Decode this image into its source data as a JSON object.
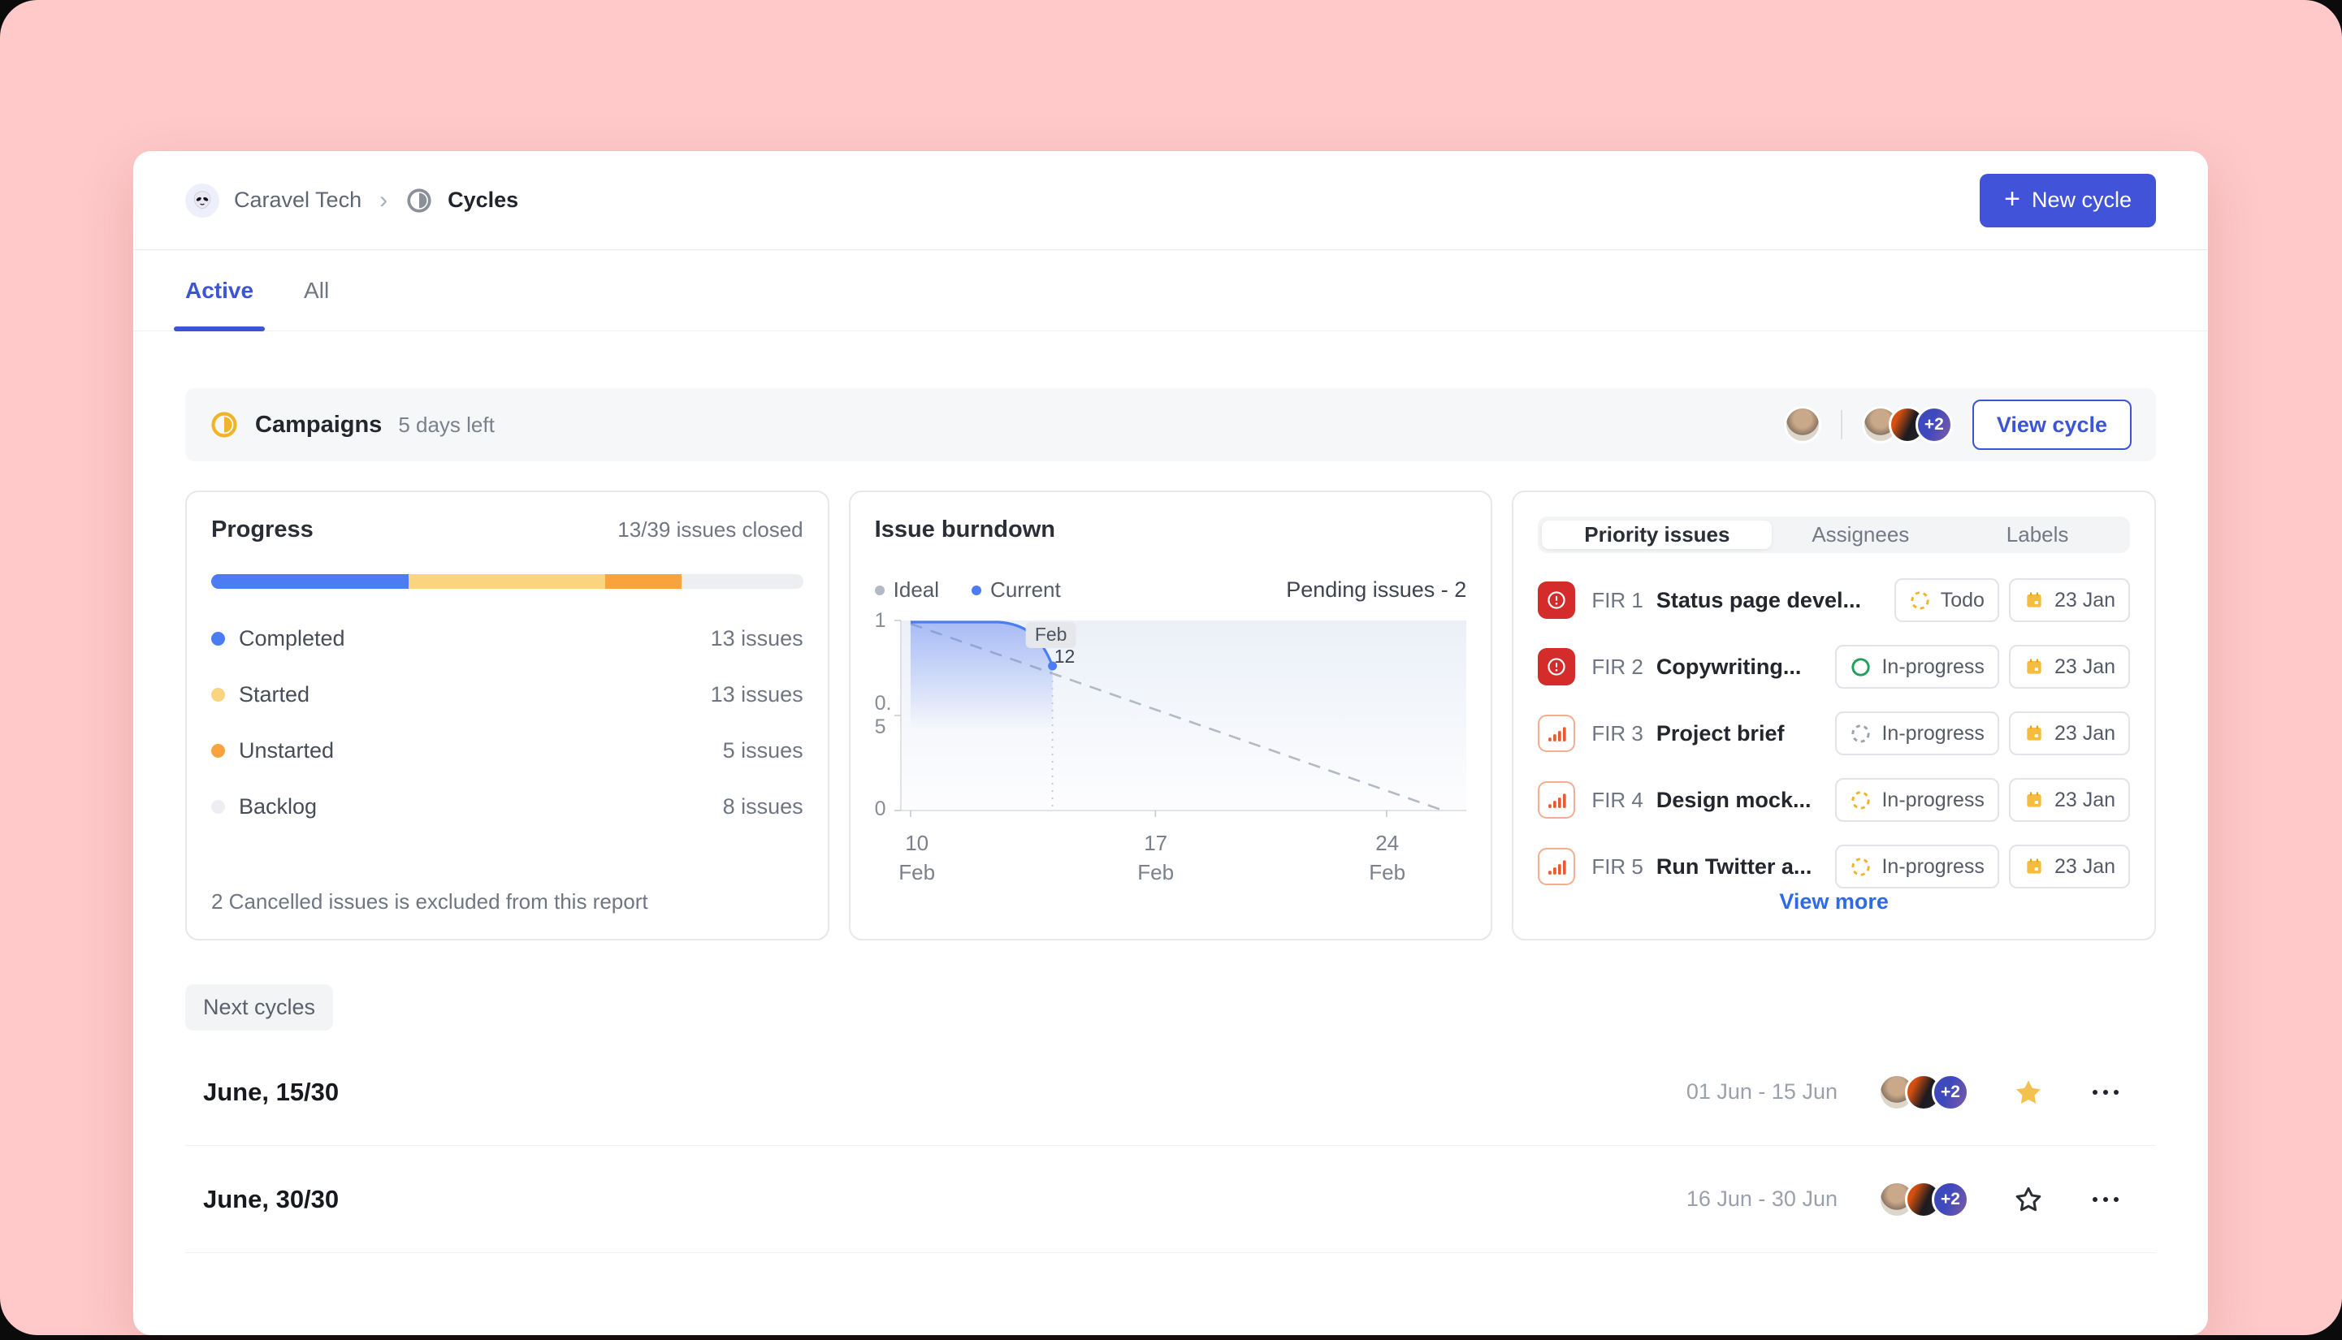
{
  "colors": {
    "page_bg": "#FFC9C9",
    "accent_blue": "#4154D9",
    "link_blue": "#2F6BE4",
    "urgent_red": "#D42B2B",
    "high_orange": "#E65C2E",
    "todo_amber": "#F0B429",
    "inprogress_green": "#1FA15D",
    "star_yellow": "#F2C14E"
  },
  "header": {
    "workspace": "Caravel Tech",
    "section": "Cycles",
    "new_cycle_label": "New cycle"
  },
  "tabs": [
    {
      "label": "Active",
      "active": true
    },
    {
      "label": "All",
      "active": false
    }
  ],
  "cycle_banner": {
    "name": "Campaigns",
    "days_left": "5 days left",
    "avatar_overflow": "+2",
    "view_cycle_label": "View cycle"
  },
  "progress_panel": {
    "title": "Progress",
    "summary": "13/39 issues closed",
    "legend": [
      {
        "label": "Completed",
        "count": "13 issues",
        "color": "#4C7CF2",
        "pct": 33.3
      },
      {
        "label": "Started",
        "count": "13 issues",
        "color": "#FBD47F",
        "pct": 33.3
      },
      {
        "label": "Unstarted",
        "count": "5 issues",
        "color": "#F8A33C",
        "pct": 12.8
      },
      {
        "label": "Backlog",
        "count": "8 issues",
        "color": "#EDEEF1",
        "pct": 20.6
      }
    ],
    "footnote": "2 Cancelled issues is excluded from this report"
  },
  "burndown_panel": {
    "title": "Issue burndown",
    "pending_label": "Pending issues - 2"
  },
  "chart_data": {
    "type": "line",
    "title": "Issue burndown",
    "ylim": [
      0,
      1
    ],
    "ytick_labels": [
      "1",
      "0.5",
      "0"
    ],
    "xticks": [
      {
        "day": "10",
        "month": "Feb"
      },
      {
        "day": "17",
        "month": "Feb"
      },
      {
        "day": "24",
        "month": "Feb"
      }
    ],
    "series": [
      {
        "name": "Ideal",
        "style": "dashed",
        "color": "#B3BAC4",
        "points": [
          {
            "x": "10 Feb",
            "y": 1
          },
          {
            "x": "26 Feb",
            "y": 0
          }
        ]
      },
      {
        "name": "Current",
        "style": "solid",
        "color": "#4C7CF2",
        "points": [
          {
            "x": "10 Feb",
            "y": 1
          },
          {
            "x": "12 Feb",
            "y": 1
          },
          {
            "x": "12 Feb",
            "y": 0.8
          }
        ]
      }
    ],
    "annotation": {
      "line1": "Feb",
      "line2": "12"
    },
    "legend_position": "top",
    "grid": false
  },
  "priority_panel": {
    "tabs": [
      "Priority issues",
      "Assignees",
      "Labels"
    ],
    "active_tab": "Priority issues",
    "issues": [
      {
        "id": "FIR 1",
        "title": "Status page devel...",
        "priority": "urgent",
        "status": "Todo",
        "date": "23 Jan"
      },
      {
        "id": "FIR 2",
        "title": "Copywriting...",
        "priority": "urgent",
        "status": "In-progress",
        "date": "23 Jan"
      },
      {
        "id": "FIR 3",
        "title": "Project brief",
        "priority": "high",
        "status": "In-progress",
        "date": "23 Jan"
      },
      {
        "id": "FIR 4",
        "title": "Design mock...",
        "priority": "high",
        "status": "In-progress",
        "date": "23 Jan"
      },
      {
        "id": "FIR 5",
        "title": "Run Twitter a...",
        "priority": "high",
        "status": "In-progress",
        "date": "23 Jan"
      }
    ],
    "view_more_label": "View more"
  },
  "next_cycles": {
    "label": "Next cycles",
    "cycles": [
      {
        "name": "June, 15/30",
        "dates": "01 Jun - 15 Jun",
        "overflow": "+2",
        "starred": true
      },
      {
        "name": "June, 30/30",
        "dates": "16 Jun - 30 Jun",
        "overflow": "+2",
        "starred": false
      }
    ]
  }
}
